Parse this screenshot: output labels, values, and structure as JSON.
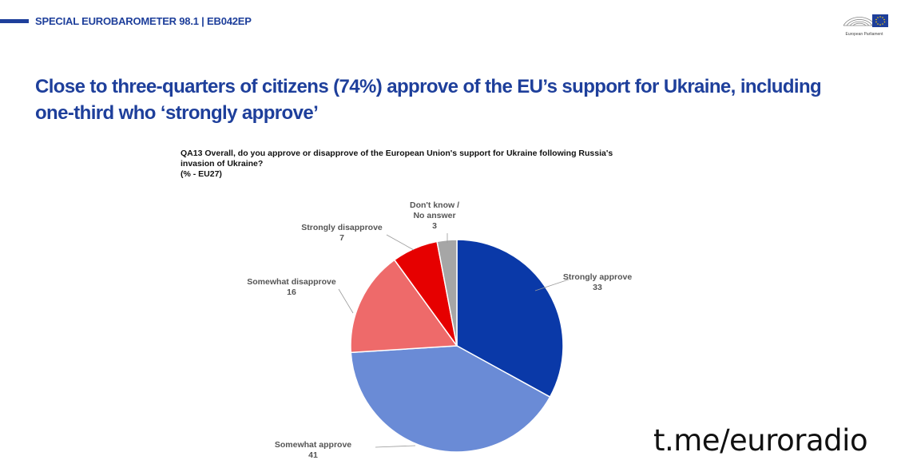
{
  "header": {
    "label": "SPECIAL EUROBAROMETER 98.1 | EB042EP",
    "logo_text": "European Parliament",
    "accent_color": "#1e3f9b"
  },
  "headline": "Close to three-quarters of citizens (74%) approve of the EU’s support for Ukraine, including one-third who ‘strongly approve’",
  "question": {
    "line1": "QA13  Overall, do you approve or disapprove of the European Union's support for Ukraine following Russia's",
    "line2": "invasion of Ukraine?",
    "line3": "(% - EU27)"
  },
  "chart_data": {
    "type": "pie",
    "start_angle": "12 o'clock",
    "direction": "clockwise",
    "slices": [
      {
        "label": "Strongly approve",
        "value": 33,
        "color": "#0a39a8"
      },
      {
        "label": "Somewhat approve",
        "value": 41,
        "color": "#6a8bd6"
      },
      {
        "label": "Somewhat disapprove",
        "value": 16,
        "color": "#ee6a6a"
      },
      {
        "label": "Strongly disapprove",
        "value": 7,
        "color": "#e60000"
      },
      {
        "label": "Don't know / No answer",
        "value": 3,
        "color": "#a6a6a6"
      }
    ]
  },
  "watermark": "t.me/euroradio"
}
